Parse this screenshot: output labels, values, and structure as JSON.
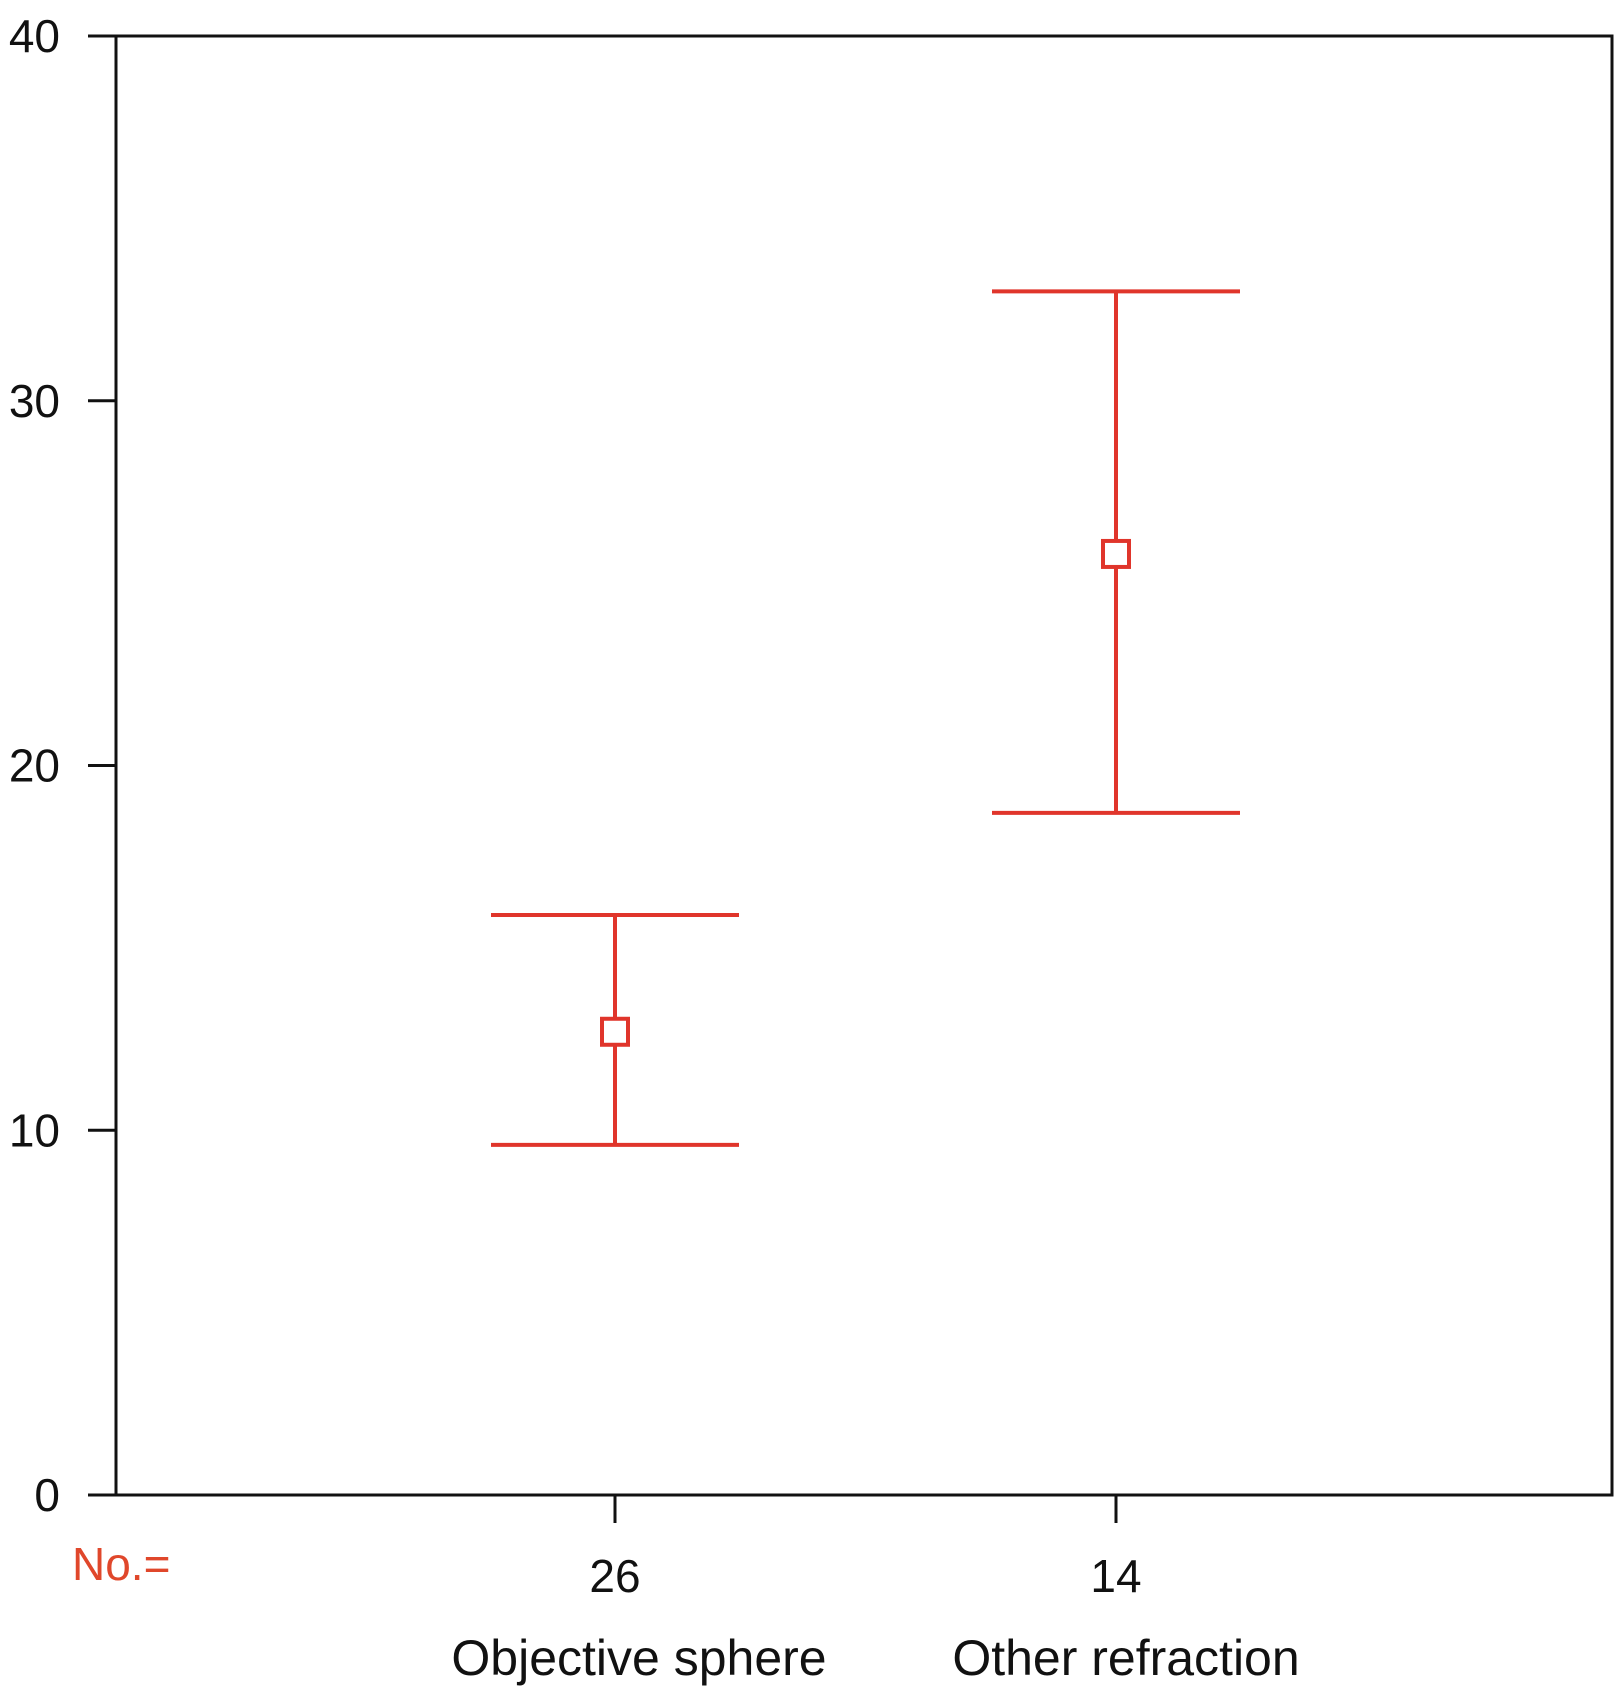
{
  "chart_data": {
    "type": "errorbar",
    "categories": [
      "Objective sphere",
      "Other refraction"
    ],
    "n_prefix": "No.=",
    "n_values": [
      "26",
      "14"
    ],
    "series": [
      {
        "mean": [
          12.7,
          25.8
        ],
        "lower": [
          9.6,
          18.7
        ],
        "upper": [
          15.9,
          33.0
        ]
      }
    ],
    "ylim": [
      0,
      40
    ],
    "yticks": [
      "0",
      "10",
      "20",
      "30",
      "40"
    ],
    "xlabel": "",
    "ylabel": "",
    "title": "",
    "grid": false,
    "legend": "none",
    "colors": {
      "series": "#e0352b",
      "axis": "#111111",
      "n_prefix": "#e0472b"
    }
  }
}
